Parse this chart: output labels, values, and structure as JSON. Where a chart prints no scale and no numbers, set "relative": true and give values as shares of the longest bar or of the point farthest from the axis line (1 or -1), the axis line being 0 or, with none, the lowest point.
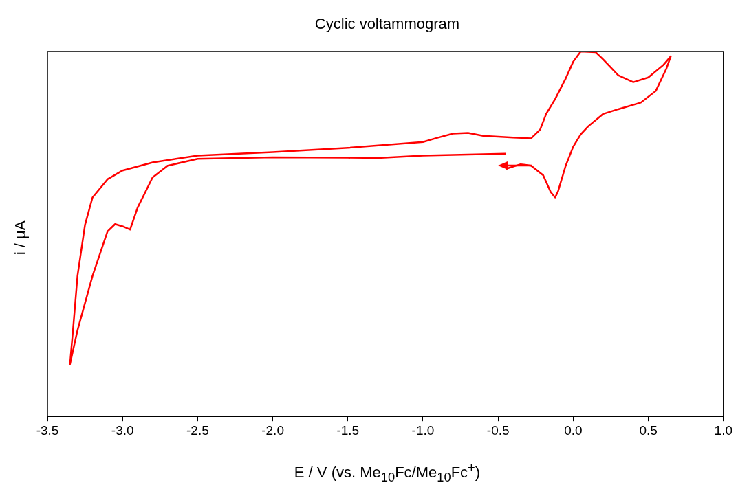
{
  "chart_data": {
    "type": "line",
    "title": "Cyclic voltammogram",
    "xlabel": "E / V (vs. Me$_{10}$Fc/Me$_{10}$Fc$^{+}$)",
    "ylabel": "i / μA",
    "relative": true,
    "grid": false,
    "legend": false,
    "marker": "none",
    "line_style": "solid",
    "xlim": [
      -3.5,
      1.0
    ],
    "xticks": [
      -3.5,
      {
        "value": -3.0,
        "label": "-3.0"
      },
      -2.5,
      {
        "value": -2.0,
        "label": "-2.0"
      },
      -1.5,
      {
        "value": -1.0,
        "label": "-1.0"
      },
      -0.5,
      {
        "value": 0,
        "label": "0.0"
      },
      0.5,
      {
        "value": 1.0,
        "label": "1.0"
      }
    ],
    "series": [
      {
        "color": "#ff0000",
        "x": [
          -0.45,
          -1.0,
          -1.3,
          -1.5,
          -2.0,
          -2.5,
          -2.7,
          -2.8,
          -2.9,
          -2.95,
          -3.0,
          -3.05,
          -3.1,
          -3.2,
          -3.3,
          -3.35,
          -3.33,
          -3.3,
          -3.25,
          -3.2,
          -3.1,
          -3.0,
          -2.8,
          -2.5,
          -2.0,
          -1.5,
          -1.0,
          -0.9,
          -0.8,
          -0.7,
          -0.6,
          -0.4,
          -0.28,
          -0.22,
          -0.18,
          -0.12,
          -0.05,
          0.0,
          0.05,
          0.15,
          0.2,
          0.3,
          0.4,
          0.5,
          0.6,
          0.65,
          0.62,
          0.55,
          0.45,
          0.3,
          0.2,
          0.1,
          0.05,
          0.0,
          -0.05,
          -0.1,
          -0.12,
          -0.15,
          -0.2,
          -0.28,
          -0.35,
          -0.45
        ],
        "values": [
          0.72,
          0.715,
          0.708,
          0.709,
          0.71,
          0.706,
          0.687,
          0.655,
          0.572,
          0.512,
          0.521,
          0.527,
          0.507,
          0.385,
          0.236,
          0.143,
          0.236,
          0.385,
          0.525,
          0.6,
          0.65,
          0.674,
          0.696,
          0.715,
          0.724,
          0.736,
          0.752,
          0.764,
          0.775,
          0.777,
          0.769,
          0.764,
          0.762,
          0.786,
          0.829,
          0.87,
          0.926,
          0.972,
          1.0,
          0.998,
          0.978,
          0.935,
          0.916,
          0.929,
          0.963,
          0.987,
          0.953,
          0.892,
          0.86,
          0.842,
          0.829,
          0.795,
          0.773,
          0.739,
          0.687,
          0.618,
          0.6,
          0.615,
          0.661,
          0.687,
          0.691,
          0.678
        ]
      }
    ]
  }
}
